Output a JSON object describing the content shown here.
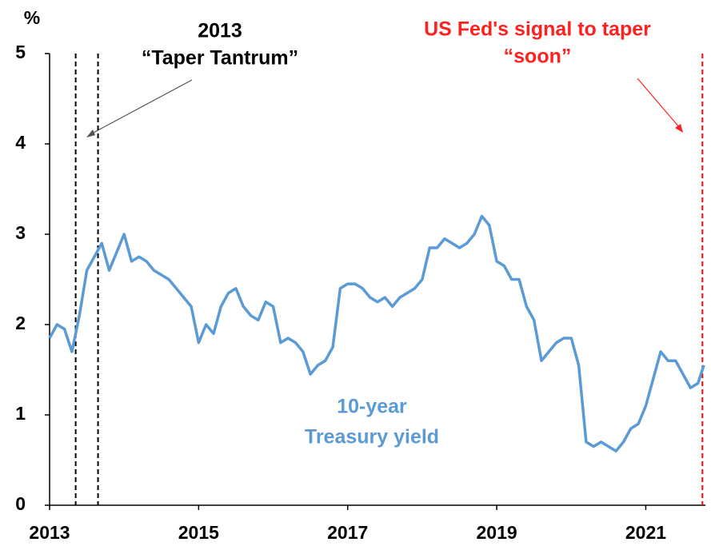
{
  "chart_data": {
    "type": "line",
    "y_unit_label": "%",
    "annotations": {
      "tantrum_year": "2013",
      "tantrum_name": "“Taper Tantrum”",
      "fed_line1": "US Fed's signal to taper",
      "fed_line2": "“soon”",
      "series_line1": "10-year",
      "series_line2": "Treasury yield"
    },
    "reference_lines": [
      {
        "x": 2013.35,
        "color": "#000000"
      },
      {
        "x": 2013.65,
        "color": "#000000"
      },
      {
        "x": 2021.76,
        "color": "#ff0000"
      }
    ],
    "x": [
      2013.0,
      2013.1,
      2013.2,
      2013.3,
      2013.4,
      2013.5,
      2013.6,
      2013.7,
      2013.8,
      2013.9,
      2014.0,
      2014.1,
      2014.2,
      2014.3,
      2014.4,
      2014.5,
      2014.6,
      2014.7,
      2014.8,
      2014.9,
      2015.0,
      2015.1,
      2015.2,
      2015.3,
      2015.4,
      2015.5,
      2015.6,
      2015.7,
      2015.8,
      2015.9,
      2016.0,
      2016.1,
      2016.2,
      2016.3,
      2016.4,
      2016.5,
      2016.6,
      2016.7,
      2016.8,
      2016.9,
      2017.0,
      2017.1,
      2017.2,
      2017.3,
      2017.4,
      2017.5,
      2017.6,
      2017.7,
      2017.8,
      2017.9,
      2018.0,
      2018.1,
      2018.2,
      2018.3,
      2018.4,
      2018.5,
      2018.6,
      2018.7,
      2018.8,
      2018.9,
      2019.0,
      2019.1,
      2019.2,
      2019.3,
      2019.4,
      2019.5,
      2019.6,
      2019.7,
      2019.8,
      2019.9,
      2020.0,
      2020.1,
      2020.2,
      2020.3,
      2020.4,
      2020.5,
      2020.6,
      2020.7,
      2020.8,
      2020.9,
      2021.0,
      2021.1,
      2021.2,
      2021.3,
      2021.4,
      2021.5,
      2021.6,
      2021.7,
      2021.78
    ],
    "series": [
      {
        "name": "10-year Treasury yield",
        "color": "#5b9bd5",
        "values": [
          1.85,
          2.0,
          1.95,
          1.7,
          2.1,
          2.6,
          2.75,
          2.9,
          2.6,
          2.8,
          3.0,
          2.7,
          2.75,
          2.7,
          2.6,
          2.55,
          2.5,
          2.4,
          2.3,
          2.2,
          1.8,
          2.0,
          1.9,
          2.2,
          2.35,
          2.4,
          2.2,
          2.1,
          2.05,
          2.25,
          2.2,
          1.8,
          1.85,
          1.8,
          1.7,
          1.45,
          1.55,
          1.6,
          1.75,
          2.4,
          2.45,
          2.45,
          2.4,
          2.3,
          2.25,
          2.3,
          2.2,
          2.3,
          2.35,
          2.4,
          2.5,
          2.85,
          2.85,
          2.95,
          2.9,
          2.85,
          2.9,
          3.0,
          3.2,
          3.1,
          2.7,
          2.65,
          2.5,
          2.5,
          2.2,
          2.05,
          1.6,
          1.7,
          1.8,
          1.85,
          1.85,
          1.55,
          0.7,
          0.65,
          0.7,
          0.65,
          0.6,
          0.7,
          0.85,
          0.9,
          1.1,
          1.4,
          1.7,
          1.6,
          1.6,
          1.45,
          1.3,
          1.35,
          1.55
        ]
      }
    ],
    "xlim": [
      2013,
      2021.8
    ],
    "xticks": [
      2013,
      2015,
      2017,
      2019,
      2021
    ],
    "ylim": [
      0,
      5
    ],
    "yticks": [
      0,
      1,
      2,
      3,
      4,
      5
    ]
  }
}
